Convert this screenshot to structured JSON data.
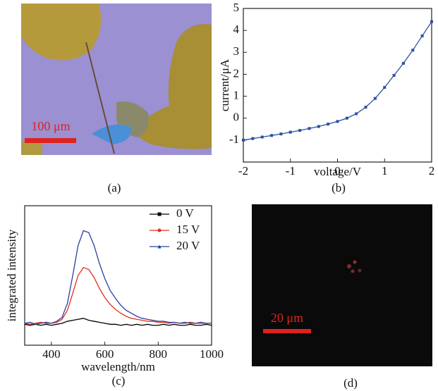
{
  "figure": {
    "panel_labels": [
      "(a)",
      "(b)",
      "(c)",
      "(d)"
    ],
    "scale_bars": [
      "100 μm",
      "20 μm"
    ]
  },
  "chart_data": [
    {
      "type": "line",
      "xlabel": "voltage/V",
      "ylabel": "current/μA",
      "color": "#2c4fa3",
      "marker": "square",
      "x": [
        -2,
        -1.8,
        -1.6,
        -1.4,
        -1.2,
        -1,
        -0.8,
        -0.6,
        -0.4,
        -0.2,
        0,
        0.2,
        0.4,
        0.6,
        0.8,
        1,
        1.2,
        1.4,
        1.6,
        1.8,
        2
      ],
      "values": [
        -1.0,
        -0.93,
        -0.86,
        -0.79,
        -0.72,
        -0.64,
        -0.56,
        -0.47,
        -0.38,
        -0.27,
        -0.15,
        0.0,
        0.2,
        0.5,
        0.9,
        1.4,
        1.95,
        2.5,
        3.1,
        3.75,
        4.4
      ],
      "xlim": [
        -2,
        2
      ],
      "xticks": [
        -2,
        -1,
        0,
        1,
        2
      ],
      "ylim": [
        -2,
        5
      ],
      "yticks": [
        -1,
        0,
        1,
        2,
        3,
        4,
        5
      ]
    },
    {
      "type": "line",
      "xlabel": "wavelength/nm",
      "ylabel": "integrated intensity",
      "legend": "upper right",
      "x": [
        300,
        320,
        340,
        360,
        380,
        400,
        420,
        440,
        460,
        480,
        500,
        520,
        540,
        560,
        580,
        600,
        620,
        640,
        660,
        680,
        700,
        720,
        740,
        760,
        780,
        800,
        820,
        840,
        860,
        880,
        900,
        920,
        940,
        960,
        980,
        1000
      ],
      "series": [
        {
          "name": "0 V",
          "color": "#000000",
          "marker": "square",
          "values": [
            0.01,
            0.0,
            0.01,
            0.0,
            0.01,
            0.0,
            0.01,
            0.02,
            0.04,
            0.05,
            0.06,
            0.07,
            0.05,
            0.04,
            0.03,
            0.02,
            0.01,
            0.01,
            0.0,
            0.01,
            0.0,
            0.01,
            0.0,
            0.01,
            0.0,
            0.0,
            0.01,
            0.0,
            0.01,
            0.0,
            0.0,
            0.01,
            0.0,
            0.0,
            0.01,
            0.0
          ]
        },
        {
          "name": "15 V",
          "color": "#e0301e",
          "marker": "circle",
          "values": [
            0.02,
            0.01,
            0.02,
            0.03,
            0.02,
            0.02,
            0.03,
            0.06,
            0.15,
            0.32,
            0.5,
            0.58,
            0.56,
            0.48,
            0.37,
            0.28,
            0.21,
            0.16,
            0.12,
            0.09,
            0.07,
            0.06,
            0.05,
            0.04,
            0.04,
            0.03,
            0.03,
            0.02,
            0.03,
            0.02,
            0.02,
            0.03,
            0.02,
            0.02,
            0.02,
            0.02
          ]
        },
        {
          "name": "20 V",
          "color": "#2b3fa0",
          "marker": "triangle",
          "values": [
            0.02,
            0.03,
            0.01,
            0.02,
            0.03,
            0.02,
            0.04,
            0.08,
            0.22,
            0.5,
            0.8,
            0.95,
            0.93,
            0.8,
            0.62,
            0.47,
            0.35,
            0.27,
            0.2,
            0.15,
            0.12,
            0.09,
            0.07,
            0.06,
            0.05,
            0.04,
            0.04,
            0.03,
            0.03,
            0.02,
            0.03,
            0.02,
            0.02,
            0.03,
            0.02,
            0.02
          ]
        }
      ],
      "xlim": [
        300,
        1000
      ],
      "xticks": [
        400,
        600,
        800,
        1000
      ],
      "ylim": [
        -0.2,
        1.2
      ]
    }
  ]
}
